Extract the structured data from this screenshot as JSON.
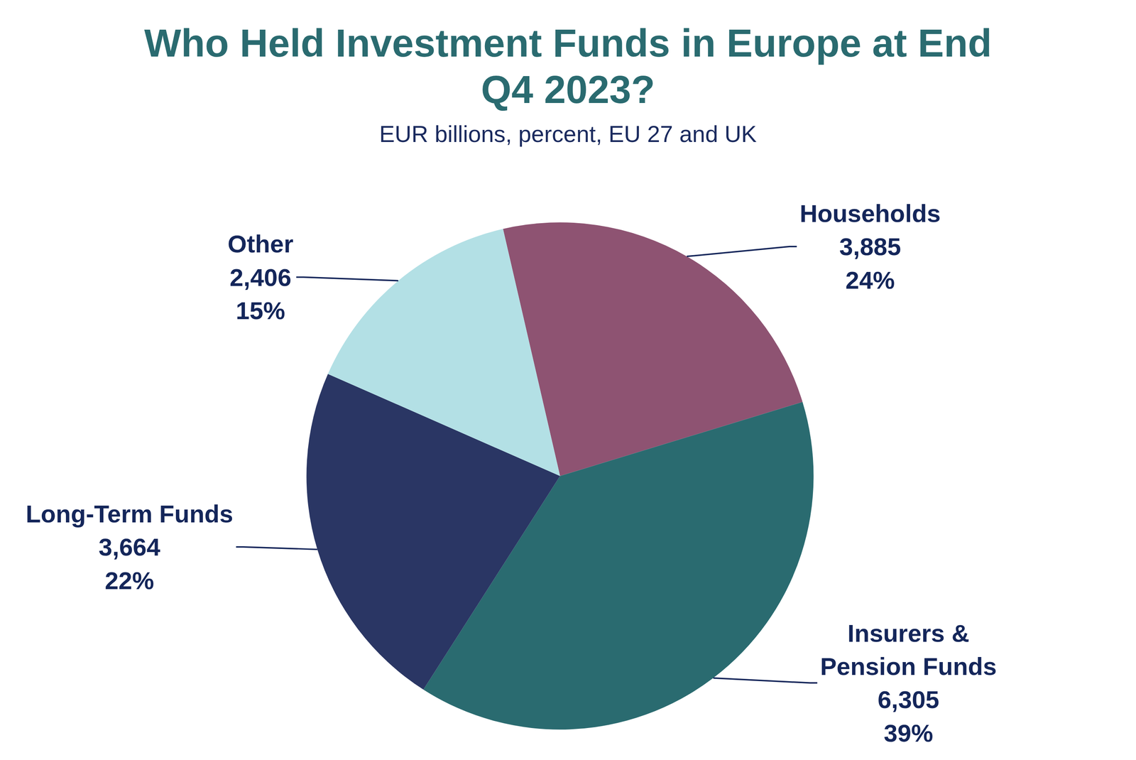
{
  "chart_data": {
    "type": "pie",
    "title": "Who Held Investment Funds in Europe at End Q4 2023?",
    "subtitle": "EUR billions, percent, EU 27 and UK",
    "categories": [
      "Households",
      "Insurers & Pension Funds",
      "Long-Term Funds",
      "Other"
    ],
    "values": [
      3885,
      6305,
      3664,
      2406
    ],
    "value_labels": [
      "3,885",
      "6,305",
      "3,664",
      "2,406"
    ],
    "percents": [
      24,
      39,
      22,
      15
    ],
    "percent_labels": [
      "24%",
      "39%",
      "22%",
      "15%"
    ],
    "colors": [
      "#8e5372",
      "#2a6b70",
      "#2a3664",
      "#b3e0e5"
    ],
    "data_labels": true
  }
}
